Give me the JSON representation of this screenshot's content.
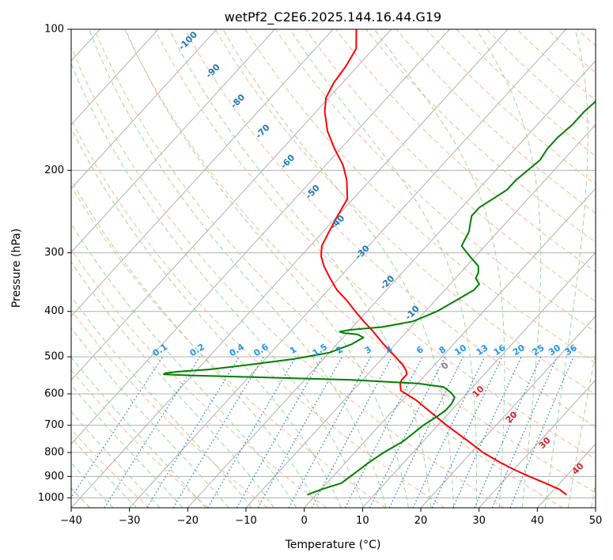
{
  "chart_data": {
    "type": "line",
    "title": "wetPf2_C2E6.2025.144.16.44.G19",
    "xlabel": "Temperature (°C)",
    "ylabel": "Pressure (hPa)",
    "xlim": [
      -40,
      50
    ],
    "ylim": [
      1050,
      100
    ],
    "y_scale": "log",
    "x_ticks": [
      -40,
      -30,
      -20,
      -10,
      0,
      10,
      20,
      30,
      40,
      50
    ],
    "y_ticks": [
      100,
      200,
      300,
      400,
      500,
      600,
      700,
      800,
      900,
      1000
    ],
    "grid": true,
    "series": [
      {
        "role": "temperature",
        "color": "#ff0000",
        "pressure": [
          985,
          960,
          930,
          900,
          870,
          840,
          800,
          750,
          700,
          650,
          620,
          590,
          570,
          560,
          545,
          535,
          520,
          500,
          470,
          440,
          420,
          400,
          380,
          360,
          340,
          320,
          305,
          290,
          270,
          250,
          230,
          210,
          195,
          180,
          165,
          150,
          140,
          130,
          120,
          110,
          100
        ],
        "temp_c": [
          43.0,
          41.0,
          37.5,
          33.7,
          30.0,
          26.5,
          22.0,
          17.0,
          11.5,
          6.0,
          2.5,
          -1.8,
          -3.0,
          -3.3,
          -3.3,
          -4.0,
          -5.5,
          -8.0,
          -12.0,
          -16.0,
          -19.0,
          -22.0,
          -25.0,
          -28.5,
          -31.5,
          -34.5,
          -36.5,
          -38.0,
          -39.0,
          -40.0,
          -41.0,
          -44.0,
          -47.0,
          -51.0,
          -55.0,
          -58.5,
          -60.5,
          -61.5,
          -62.0,
          -63.0,
          -66.0
        ]
      },
      {
        "role": "dewpoint",
        "color": "#008000",
        "pressure": [
          985,
          960,
          930,
          900,
          870,
          840,
          800,
          760,
          730,
          700,
          670,
          650,
          630,
          610,
          595,
          580,
          570,
          560,
          552,
          548,
          545,
          542,
          538,
          532,
          520,
          505,
          490,
          470,
          455,
          448,
          445,
          442,
          438,
          432,
          420,
          400,
          380,
          360,
          350,
          340,
          330,
          320,
          310,
          300,
          290,
          280,
          270,
          260,
          250,
          240,
          230,
          220,
          210,
          200,
          190,
          180,
          170,
          160,
          150,
          140,
          130,
          120,
          110,
          100
        ],
        "temp_c": [
          -1.5,
          0.0,
          2.5,
          3.0,
          3.5,
          4.0,
          5.0,
          6.5,
          7.0,
          7.5,
          8.5,
          9.0,
          9.0,
          8.5,
          7.0,
          5.0,
          0.0,
          -12.0,
          -30.0,
          -40.0,
          -45.0,
          -45.0,
          -43.0,
          -38.0,
          -32.0,
          -25.0,
          -20.0,
          -17.5,
          -16.5,
          -18.0,
          -20.5,
          -21.5,
          -20.0,
          -15.0,
          -10.5,
          -8.0,
          -6.5,
          -5.0,
          -5.0,
          -6.5,
          -7.0,
          -8.0,
          -10.0,
          -12.0,
          -14.0,
          -14.5,
          -15.0,
          -16.0,
          -17.0,
          -17.0,
          -16.0,
          -15.0,
          -15.0,
          -14.5,
          -14.0,
          -14.5,
          -14.5,
          -14.0,
          -14.0,
          -13.5,
          -12.5,
          -11.0,
          -8.5,
          -7.0
        ]
      }
    ],
    "dry_adiabat_labels": [
      {
        "text": "-100",
        "theta": -100
      },
      {
        "text": "-90",
        "theta": -90
      },
      {
        "text": "-80",
        "theta": -80
      },
      {
        "text": "-70",
        "theta": -70
      },
      {
        "text": "-60",
        "theta": -60
      },
      {
        "text": "-50",
        "theta": -50
      },
      {
        "text": "-40",
        "theta": -40
      },
      {
        "text": "-30",
        "theta": -30
      },
      {
        "text": "-20",
        "theta": -20
      },
      {
        "text": "-10",
        "theta": -10
      }
    ],
    "moist_adiabat_labels": [
      {
        "text": "0",
        "thetaw": 0,
        "color": "#808080"
      },
      {
        "text": "10",
        "thetaw": 10,
        "color": "#d62728"
      },
      {
        "text": "20",
        "thetaw": 20,
        "color": "#d62728"
      },
      {
        "text": "30",
        "thetaw": 30,
        "color": "#d62728"
      },
      {
        "text": "40",
        "thetaw": 40,
        "color": "#d62728"
      }
    ],
    "mixing_ratio_labels": [
      "0.1",
      "0.2",
      "0.4",
      "0.6",
      "1",
      "1.5",
      "2",
      "3",
      "4",
      "6",
      "8",
      "10",
      "13",
      "16",
      "20",
      "25",
      "30",
      "36"
    ],
    "mixing_ratio_values": [
      0.1,
      0.2,
      0.4,
      0.6,
      1,
      1.5,
      2,
      3,
      4,
      6,
      8,
      10,
      13,
      16,
      20,
      25,
      30,
      36
    ],
    "colors": {
      "skew_isotherm": "#a8a8a8",
      "grid": "#b0b0b0",
      "dry_adiabat": "#ffb49a",
      "moist_adiabat": "#9fd49f",
      "mixing_ratio": "#1f77b4",
      "dry_adiabat_label": "#1f77b4",
      "mixing_ratio_label": "#2196f3"
    }
  }
}
